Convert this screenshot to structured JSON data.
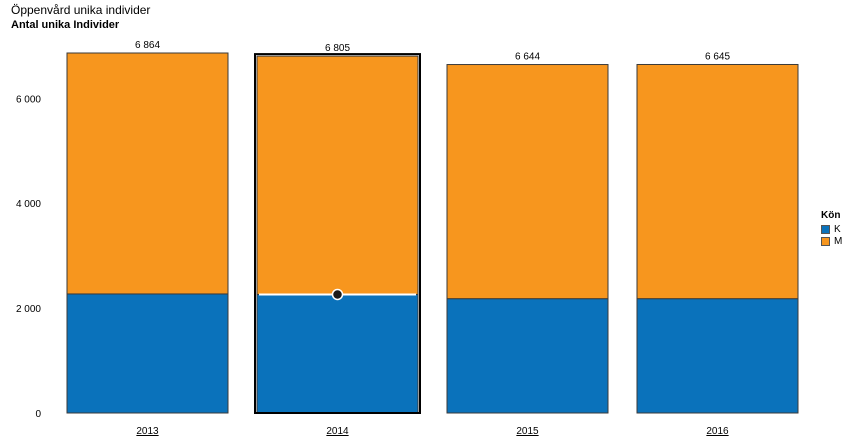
{
  "header": {
    "title": "Öppenvård unika individer",
    "subtitle": "Antal unika Individer"
  },
  "legend": {
    "title": "Kön",
    "items": [
      {
        "label": "K",
        "color": "#0a72bb"
      },
      {
        "label": "M",
        "color": "#f7961e"
      }
    ]
  },
  "chart_data": {
    "type": "bar",
    "stacked": true,
    "categories": [
      "2013",
      "2014",
      "2015",
      "2016"
    ],
    "series": [
      {
        "name": "K",
        "color": "#0a72bb",
        "values": [
          2270,
          2260,
          2180,
          2180
        ]
      },
      {
        "name": "M",
        "color": "#f7961e",
        "values": [
          4594,
          4545,
          4464,
          4465
        ]
      }
    ],
    "totals": [
      6864,
      6805,
      6644,
      6645
    ],
    "total_labels": [
      "6 864",
      "6 805",
      "6 644",
      "6 645"
    ],
    "yticks": [
      0,
      2000,
      4000,
      6000
    ],
    "ytick_labels": [
      "0",
      "2 000",
      "4 000",
      "6 000"
    ],
    "ylim": [
      0,
      6864
    ],
    "highlighted_category": "2014",
    "grid": false,
    "legend_position": "right"
  }
}
